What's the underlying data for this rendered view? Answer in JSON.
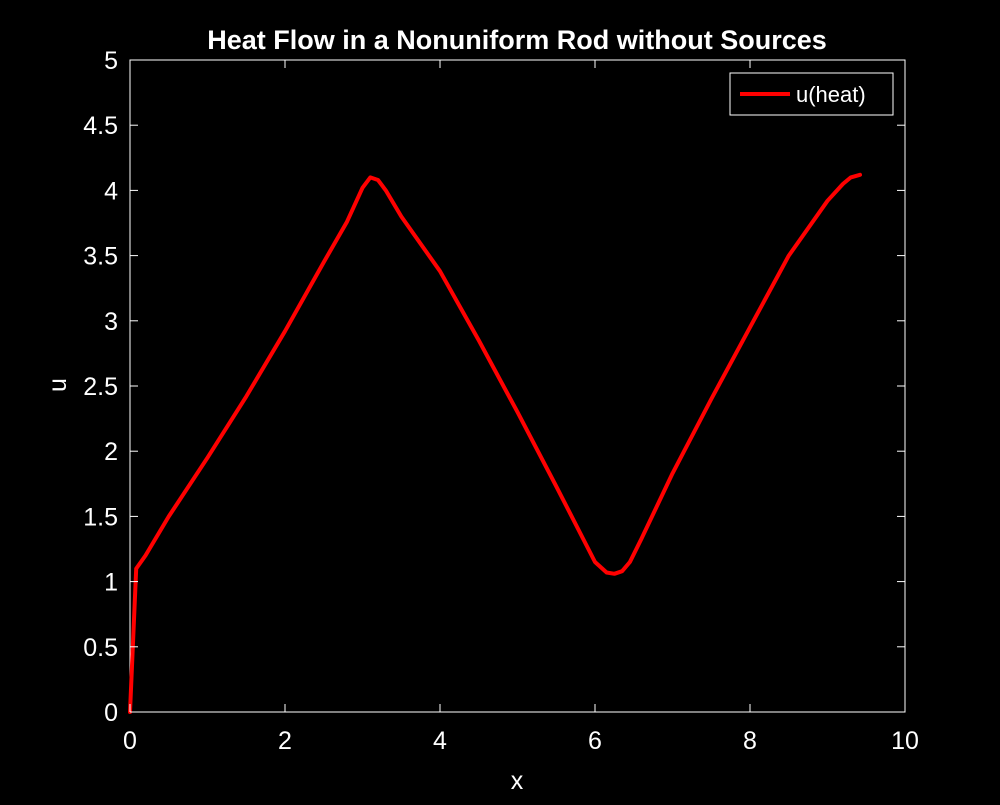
{
  "chart_data": {
    "type": "line",
    "title": "Heat Flow in a Nonuniform Rod without Sources",
    "xlabel": "x",
    "ylabel": "u",
    "xlim": [
      0,
      10
    ],
    "ylim": [
      0,
      5
    ],
    "xticks": [
      0,
      2,
      4,
      6,
      8,
      10
    ],
    "xtick_labels": [
      "0",
      "2",
      "4",
      "6",
      "8",
      "10"
    ],
    "yticks": [
      0,
      0.5,
      1,
      1.5,
      2,
      2.5,
      3,
      3.5,
      4,
      4.5,
      5
    ],
    "ytick_labels": [
      "0",
      "0.5",
      "1",
      "1.5",
      "2",
      "2.5",
      "3",
      "3.5",
      "4",
      "4.5",
      "5"
    ],
    "grid": false,
    "legend_position": "top-right",
    "background_color": "#000000",
    "axes_color": "#ffffff",
    "series": [
      {
        "name": "u(heat)",
        "color": "#ff0000",
        "x": [
          0,
          0.08,
          0.2,
          0.5,
          1.0,
          1.5,
          2.0,
          2.5,
          2.8,
          3.0,
          3.1,
          3.2,
          3.3,
          3.5,
          4.0,
          4.5,
          5.0,
          5.5,
          6.0,
          6.15,
          6.25,
          6.35,
          6.45,
          6.6,
          7.0,
          7.5,
          8.0,
          8.5,
          9.0,
          9.2,
          9.3,
          9.42
        ],
        "values": [
          0,
          1.1,
          1.2,
          1.5,
          1.95,
          2.42,
          2.92,
          3.45,
          3.76,
          4.02,
          4.1,
          4.08,
          4.0,
          3.8,
          3.38,
          2.85,
          2.3,
          1.73,
          1.15,
          1.07,
          1.06,
          1.08,
          1.15,
          1.33,
          1.83,
          2.4,
          2.95,
          3.5,
          3.92,
          4.05,
          4.1,
          4.12
        ]
      }
    ]
  }
}
